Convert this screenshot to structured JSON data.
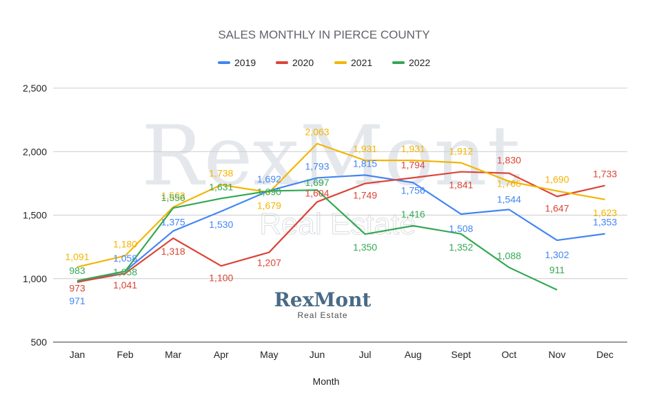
{
  "chart_data": {
    "type": "line",
    "title": "SALES MONTHLY IN PIERCE COUNTY",
    "xlabel": "Month",
    "ylabel": "",
    "ylim": [
      500,
      2500
    ],
    "yticks": [
      "500",
      "1,000",
      "1,500",
      "2,000",
      "2,500"
    ],
    "ytick_values": [
      500,
      1000,
      1500,
      2000,
      2500
    ],
    "grid": true,
    "legend_position": "top",
    "categories": [
      "Jan",
      "Feb",
      "Mar",
      "Apr",
      "May",
      "Jun",
      "Jul",
      "Aug",
      "Sept",
      "Oct",
      "Nov",
      "Dec"
    ],
    "series": [
      {
        "name": "2019",
        "color": "#4285f4",
        "values": [
          971,
          1058,
          1375,
          1530,
          1692,
          1793,
          1815,
          1756,
          1508,
          1544,
          1302,
          1353
        ]
      },
      {
        "name": "2020",
        "color": "#db4437",
        "values": [
          973,
          1041,
          1318,
          1100,
          1207,
          1604,
          1749,
          1794,
          1841,
          1830,
          1647,
          1733
        ]
      },
      {
        "name": "2021",
        "color": "#f4b400",
        "values": [
          1091,
          1180,
          1563,
          1738,
          1679,
          2063,
          1931,
          1931,
          1912,
          1766,
          1690,
          1623
        ]
      },
      {
        "name": "2022",
        "color": "#34a853",
        "values": [
          983,
          1058,
          1556,
          1631,
          1690,
          1697,
          1350,
          1416,
          1352,
          1088,
          911,
          null
        ]
      }
    ]
  },
  "watermark": {
    "main": "RexMont",
    "sub": "Real Estate"
  },
  "logo": {
    "main": "RexMont",
    "sub": "Real Estate"
  }
}
